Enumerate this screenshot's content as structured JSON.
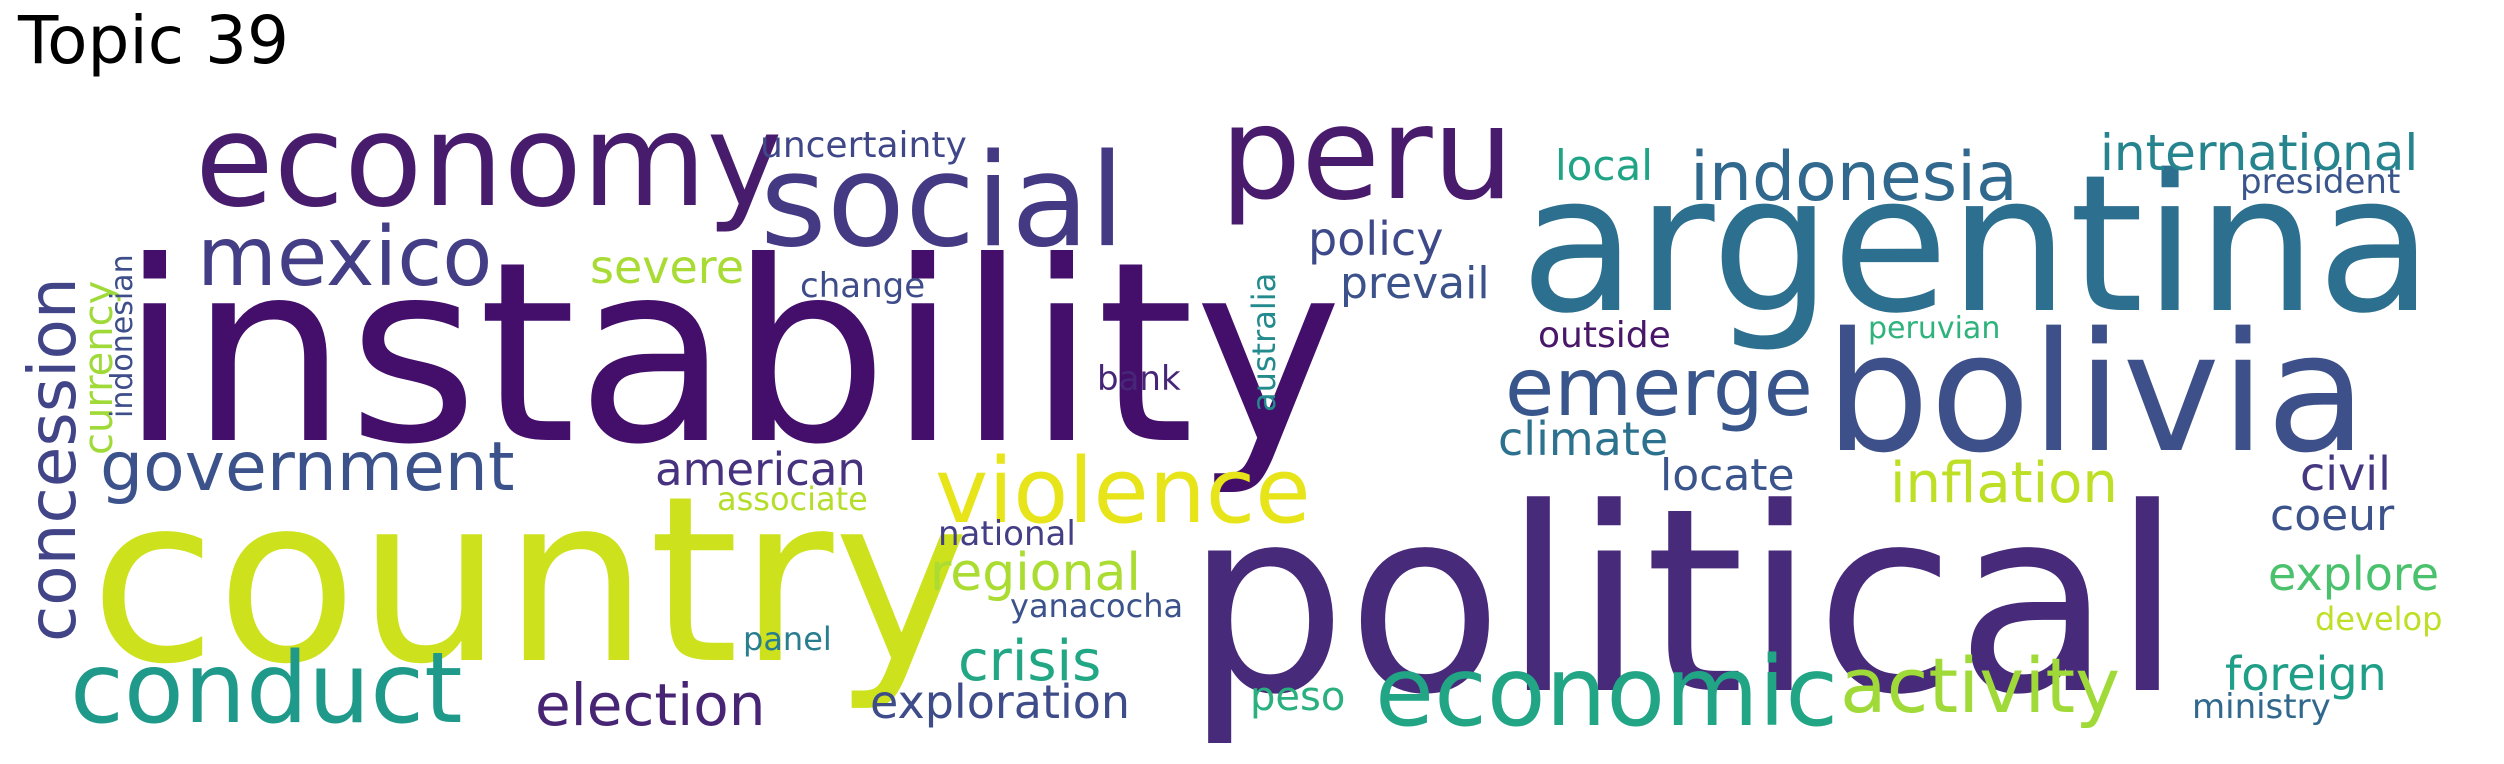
{
  "title": "Topic 39",
  "words": [
    {
      "text": "instability",
      "color": "#440f6a"
    },
    {
      "text": "country",
      "color": "#cde11d"
    },
    {
      "text": "political",
      "color": "#472a7a"
    },
    {
      "text": "argentina",
      "color": "#2d6f8e"
    },
    {
      "text": "bolivia",
      "color": "#3e5089"
    },
    {
      "text": "economy",
      "color": "#471c6d"
    },
    {
      "text": "social",
      "color": "#443983"
    },
    {
      "text": "peru",
      "color": "#481b6d"
    },
    {
      "text": "economic",
      "color": "#21a585"
    },
    {
      "text": "conduct",
      "color": "#1f9a8a"
    },
    {
      "text": "violence",
      "color": "#e7e419"
    },
    {
      "text": "mexico",
      "color": "#433e85"
    },
    {
      "text": "emerge",
      "color": "#39568c"
    },
    {
      "text": "activity",
      "color": "#a0da39"
    },
    {
      "text": "government",
      "color": "#3b528b"
    },
    {
      "text": "indonesia",
      "color": "#31688e"
    },
    {
      "text": "concession",
      "color": "#414487"
    },
    {
      "text": "inflation",
      "color": "#bddf26"
    },
    {
      "text": "international",
      "color": "#25848e"
    },
    {
      "text": "election",
      "color": "#482475"
    },
    {
      "text": "exploration",
      "color": "#3e4c8a"
    },
    {
      "text": "crisis",
      "color": "#22a785"
    },
    {
      "text": "regional",
      "color": "#aadc32"
    },
    {
      "text": "american",
      "color": "#46327e"
    },
    {
      "text": "climate",
      "color": "#2c728e"
    },
    {
      "text": "locate",
      "color": "#3a548c"
    },
    {
      "text": "policy",
      "color": "#3e4989"
    },
    {
      "text": "prevail",
      "color": "#3b528b"
    },
    {
      "text": "severe",
      "color": "#a8db34"
    },
    {
      "text": "civil",
      "color": "#453781"
    },
    {
      "text": "coeur",
      "color": "#3b528b"
    },
    {
      "text": "explore",
      "color": "#4ac16d"
    },
    {
      "text": "foreign",
      "color": "#1f9f88"
    },
    {
      "text": "currency",
      "color": "#a0da39"
    },
    {
      "text": "local",
      "color": "#20a486"
    },
    {
      "text": "peso",
      "color": "#2ab07f"
    },
    {
      "text": "uncertainty",
      "color": "#3f4788"
    },
    {
      "text": "president",
      "color": "#3a548c"
    },
    {
      "text": "change",
      "color": "#3e4c8a"
    },
    {
      "text": "outside",
      "color": "#481769"
    },
    {
      "text": "australia",
      "color": "#238a8d"
    },
    {
      "text": "bank",
      "color": "#482677"
    },
    {
      "text": "national",
      "color": "#433e85"
    },
    {
      "text": "associate",
      "color": "#b5de2b"
    },
    {
      "text": "yanacocha",
      "color": "#3b528b"
    },
    {
      "text": "panel",
      "color": "#287d8e"
    },
    {
      "text": "peruvian",
      "color": "#2eb37c"
    },
    {
      "text": "indonesian",
      "color": "#3d4e8a"
    },
    {
      "text": "develop",
      "color": "#bddf26"
    },
    {
      "text": "ministry",
      "color": "#31688e"
    }
  ]
}
